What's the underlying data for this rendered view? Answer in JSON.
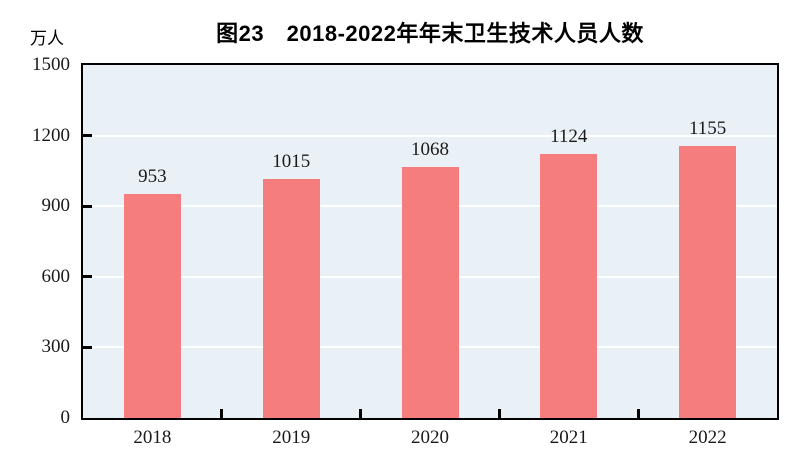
{
  "chart_data": {
    "type": "bar",
    "title": "图23　2018-2022年年末卫生技术人员人数",
    "ylabel": "万人",
    "xlabel": "",
    "categories": [
      "2018",
      "2019",
      "2020",
      "2021",
      "2022"
    ],
    "values": [
      953,
      1015,
      1068,
      1124,
      1155
    ],
    "ylim": [
      0,
      1500
    ],
    "yticks": [
      0,
      300,
      600,
      900,
      1200,
      1500
    ],
    "grid": true,
    "legend": "none",
    "bar_color": "#F57D7D",
    "plot_bg": "#EAF1F6",
    "grid_color": "#FFFFFF",
    "axis_color": "#000000"
  }
}
